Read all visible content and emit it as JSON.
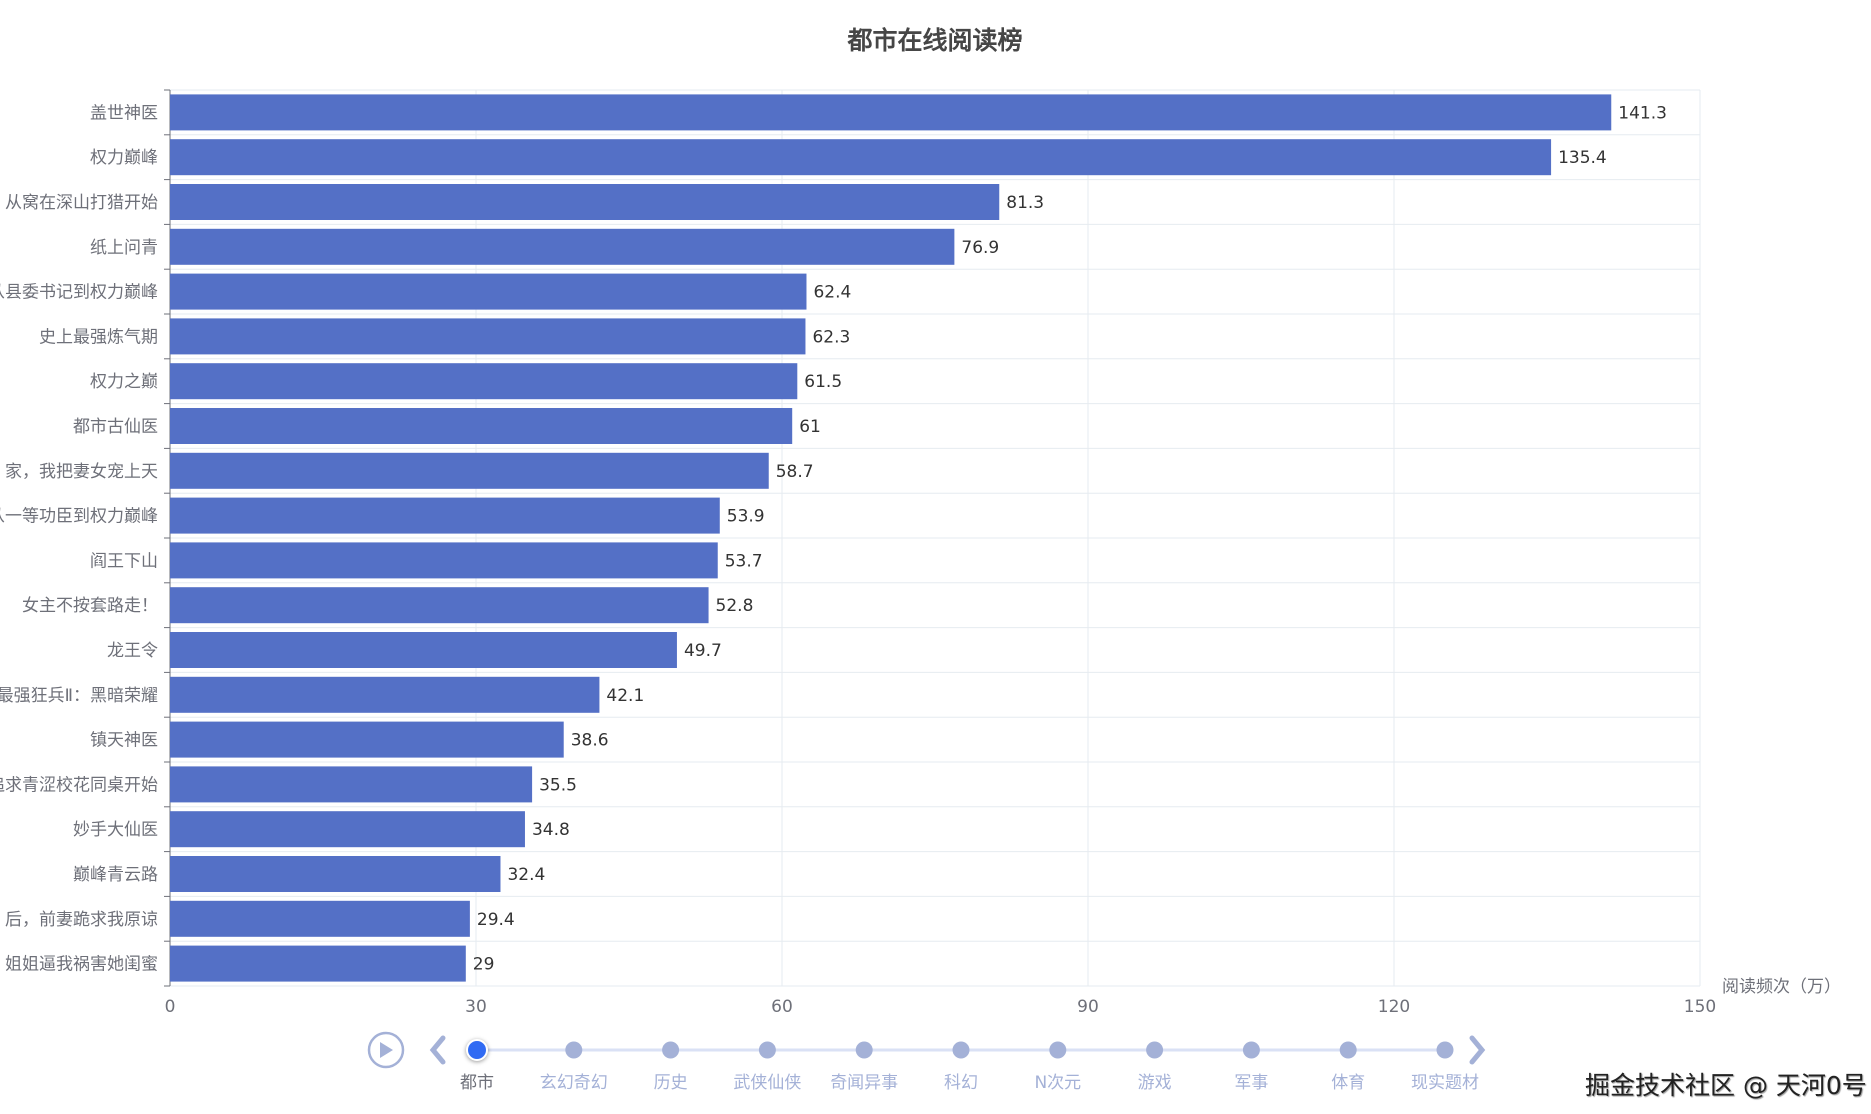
{
  "chart_data": {
    "type": "bar",
    "orientation": "horizontal",
    "title": "都市在线阅读榜",
    "xlabel": "阅读频次（万）",
    "ylabel": "",
    "xlim": [
      0,
      150
    ],
    "xticks": [
      0,
      30,
      60,
      90,
      120,
      150
    ],
    "grid": true,
    "bar_color": "#5470c6",
    "categories": [
      "盖世神医",
      "权力巅峰",
      "从窝在深山打猎开始",
      "纸上问青",
      "从县委书记到权力巅峰",
      "史上最强炼气期",
      "权力之巅",
      "都市古仙医",
      "家，我把妻女宠上天",
      "从一等功臣到权力巅峰",
      "阎王下山",
      "女主不按套路走！",
      "龙王令",
      "最强狂兵Ⅱ：黑暗荣耀",
      "镇天神医",
      "从追求青涩校花同桌开始",
      "妙手大仙医",
      "巅峰青云路",
      "后，前妻跪求我原谅",
      "姐姐逼我祸害她闺蜜"
    ],
    "values": [
      141.3,
      135.4,
      81.3,
      76.9,
      62.4,
      62.3,
      61.5,
      61,
      58.7,
      53.9,
      53.7,
      52.8,
      49.7,
      42.1,
      38.6,
      35.5,
      34.8,
      32.4,
      29.4,
      29
    ]
  },
  "timeline": {
    "items": [
      "都市",
      "玄幻奇幻",
      "历史",
      "武侠仙侠",
      "奇闻异事",
      "科幻",
      "N次元",
      "游戏",
      "军事",
      "体育",
      "现实题材"
    ],
    "current_index": 0,
    "active_color": "#316bf3",
    "inactive_color": "#a4b1d7"
  },
  "watermark": "掘金技术社区 @ 天河0号"
}
